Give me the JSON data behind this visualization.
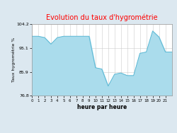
{
  "title": "Evolution du taux d'hygrométrie",
  "title_color": "#ff0000",
  "xlabel": "heure par heure",
  "ylabel": "Taux hygrométrie %",
  "background_color": "#dce8f0",
  "plot_bg_color": "#ffffff",
  "line_color": "#5bb8d4",
  "fill_color": "#aadcec",
  "ylim": [
    76.8,
    104.2
  ],
  "yticks": [
    76.8,
    85.9,
    95.1,
    104.2
  ],
  "xlim": [
    0,
    22
  ],
  "xticks": [
    0,
    1,
    2,
    3,
    4,
    5,
    6,
    7,
    8,
    9,
    10,
    11,
    12,
    13,
    14,
    15,
    16,
    17,
    18,
    19,
    20,
    21
  ],
  "hours": [
    0,
    1,
    2,
    3,
    4,
    5,
    6,
    7,
    8,
    9,
    10,
    11,
    12,
    13,
    14,
    15,
    16,
    17,
    18,
    19,
    20,
    21,
    22
  ],
  "values": [
    99.5,
    99.5,
    99.0,
    96.5,
    99.0,
    99.5,
    99.5,
    99.5,
    99.5,
    99.5,
    87.5,
    87.0,
    80.5,
    85.0,
    85.5,
    84.5,
    84.5,
    93.0,
    93.5,
    101.5,
    99.2,
    93.5,
    93.5
  ]
}
